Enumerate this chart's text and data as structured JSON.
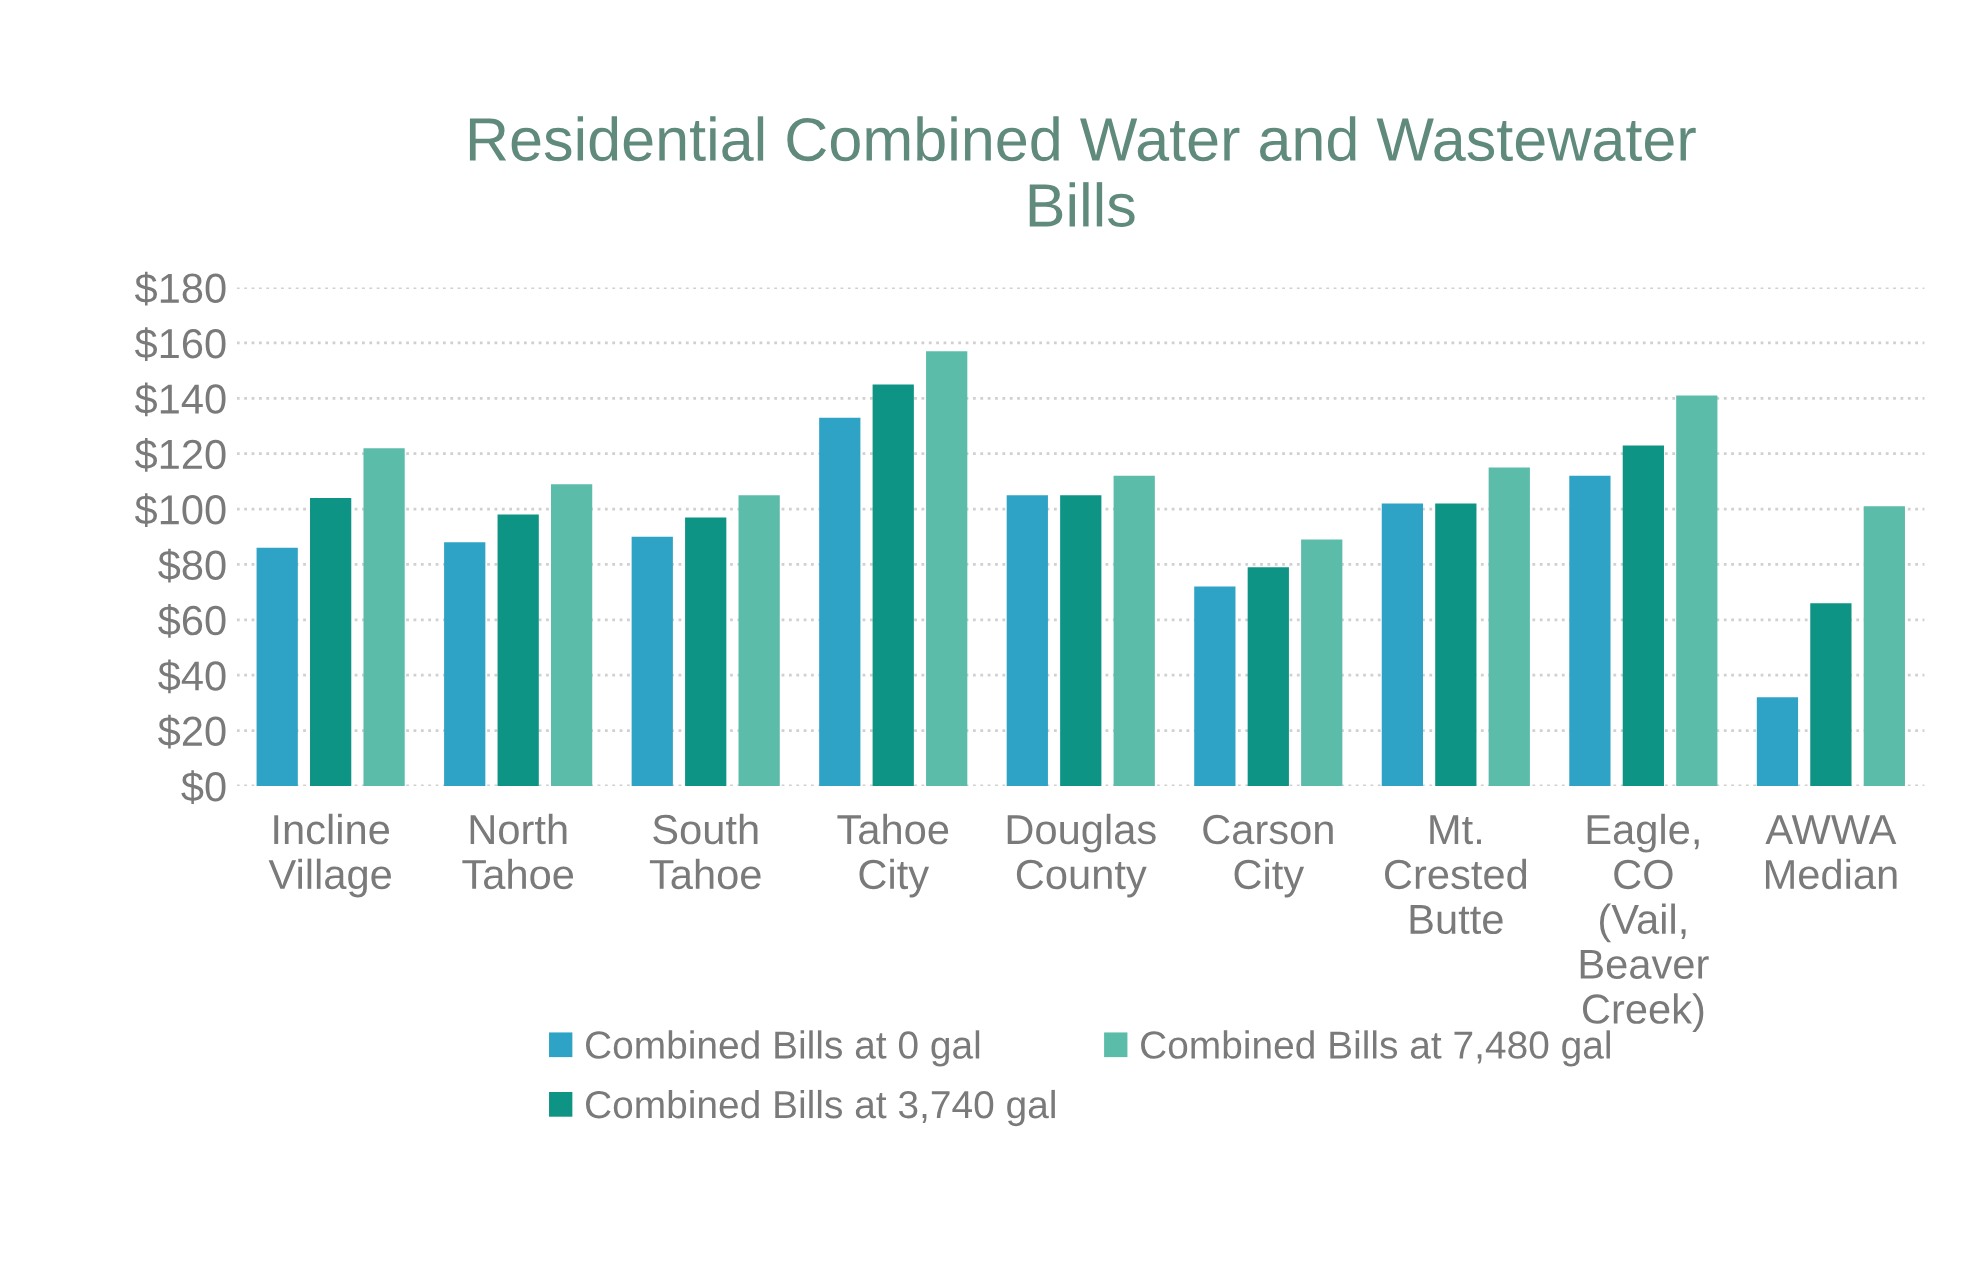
{
  "chart_data": {
    "type": "bar",
    "title": "Residential Combined Water and Wastewater\nBills",
    "categories": [
      "Incline\nVillage",
      "North\nTahoe",
      "South\nTahoe",
      "Tahoe\nCity",
      "Douglas\nCounty",
      "Carson\nCity",
      "Mt.\nCrested\nButte",
      "Eagle,\nCO\n(Vail,\nBeaver\nCreek)",
      "AWWA\nMedian"
    ],
    "series": [
      {
        "name": "Combined Bills at 0 gal",
        "color": "#2fa3c5",
        "values": [
          86,
          88,
          90,
          133,
          105,
          72,
          102,
          112,
          32
        ]
      },
      {
        "name": "Combined Bills at 3,740 gal",
        "color": "#0e9484",
        "values": [
          104,
          98,
          97,
          145,
          105,
          79,
          102,
          123,
          66
        ]
      },
      {
        "name": "Combined Bills at 7,480 gal",
        "color": "#5cbcaa",
        "values": [
          122,
          109,
          105,
          157,
          112,
          89,
          115,
          141,
          101
        ]
      }
    ],
    "ylim": [
      0,
      180
    ],
    "yticks": [
      {
        "value": 0,
        "label": "$0"
      },
      {
        "value": 20,
        "label": "$20"
      },
      {
        "value": 40,
        "label": "$40"
      },
      {
        "value": 60,
        "label": "$60"
      },
      {
        "value": 80,
        "label": "$80"
      },
      {
        "value": 100,
        "label": "$100"
      },
      {
        "value": 120,
        "label": "$120"
      },
      {
        "value": 140,
        "label": "$140"
      },
      {
        "value": 160,
        "label": "$160"
      },
      {
        "value": 180,
        "label": "$180"
      }
    ],
    "grid": "y",
    "legend": "bottom"
  }
}
